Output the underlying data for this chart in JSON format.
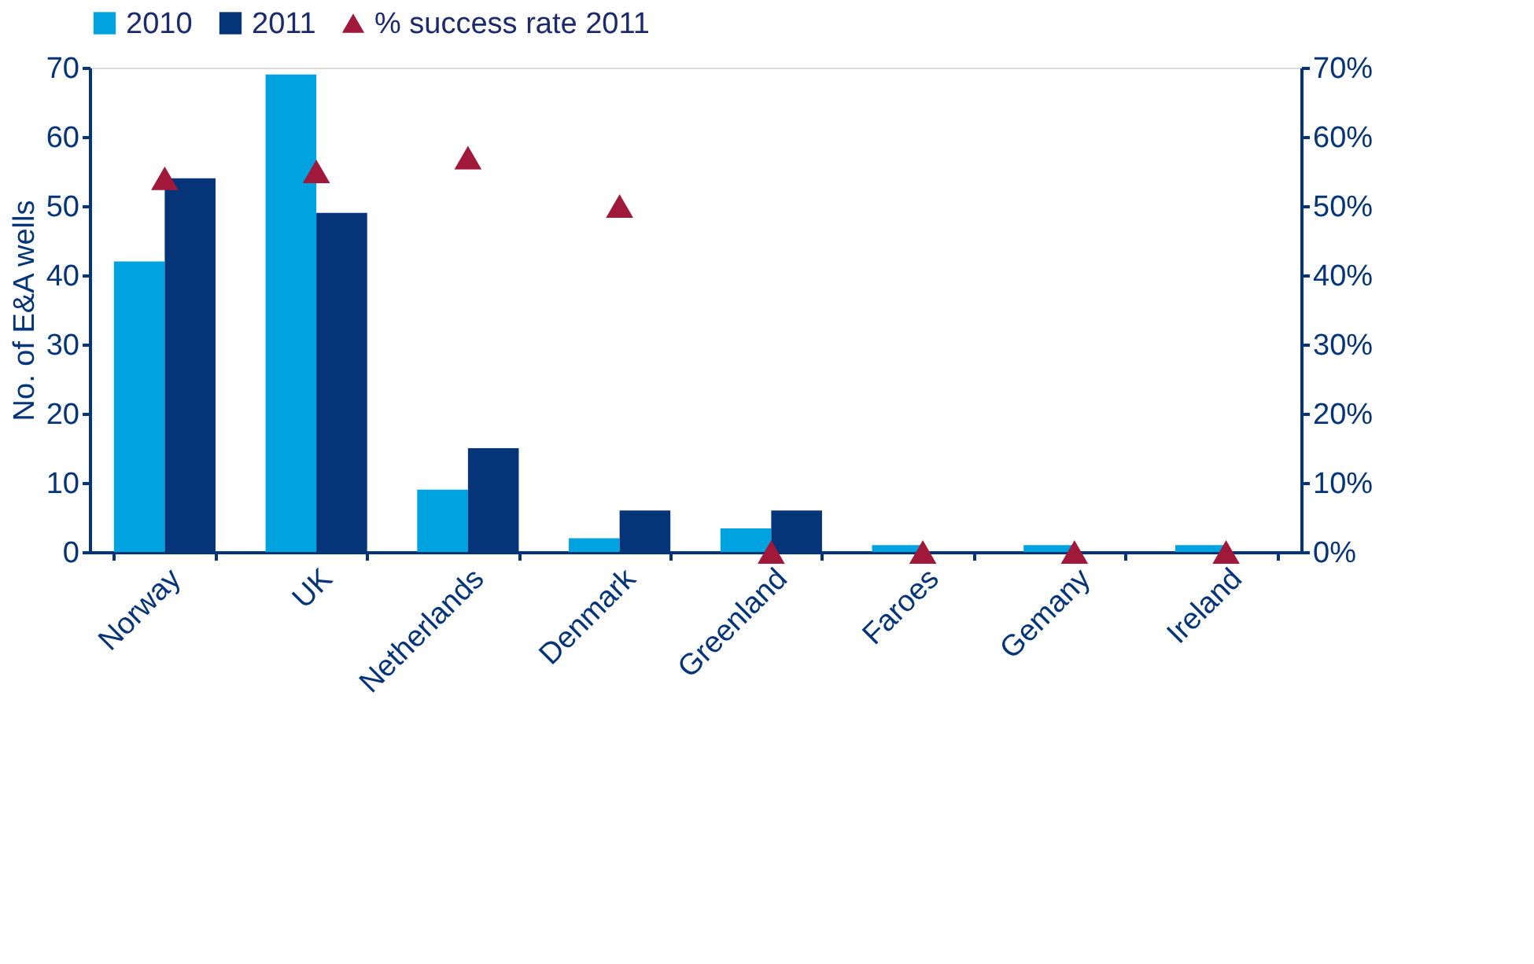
{
  "chart_data": {
    "type": "bar",
    "categories": [
      "Norway",
      "UK",
      "Netherlands",
      "Denmark",
      "Greenland",
      "Faroes",
      "Gemany",
      "Ireland"
    ],
    "ylabel": "No. of E&A wells",
    "ylim": [
      0,
      70
    ],
    "yticks": [
      0,
      10,
      20,
      30,
      40,
      50,
      60,
      70
    ],
    "y2lim": [
      0,
      70
    ],
    "y2ticks": [
      {
        "value": 0,
        "label": "0%"
      },
      {
        "value": 10,
        "label": "10%"
      },
      {
        "value": 20,
        "label": "20%"
      },
      {
        "value": 30,
        "label": "30%"
      },
      {
        "value": 40,
        "label": "40%"
      },
      {
        "value": 50,
        "label": "50%"
      },
      {
        "value": 60,
        "label": "60%"
      },
      {
        "value": 70,
        "label": "70%"
      }
    ],
    "legend": "top",
    "grid": false,
    "series": [
      {
        "name": "2010",
        "color": "#00a3e0",
        "values": [
          42,
          69,
          9,
          2,
          3.4,
          1,
          1,
          1
        ]
      },
      {
        "name": "2011",
        "color": "#063478",
        "values": [
          54,
          49,
          15,
          6,
          6,
          0,
          0,
          0
        ]
      },
      {
        "name": "% success rate 2011",
        "type": "scatter",
        "marker": "triangle",
        "axis": "y2",
        "color": "#a0183a",
        "values": [
          54,
          55,
          57,
          50,
          0,
          0,
          0,
          0
        ]
      }
    ]
  }
}
